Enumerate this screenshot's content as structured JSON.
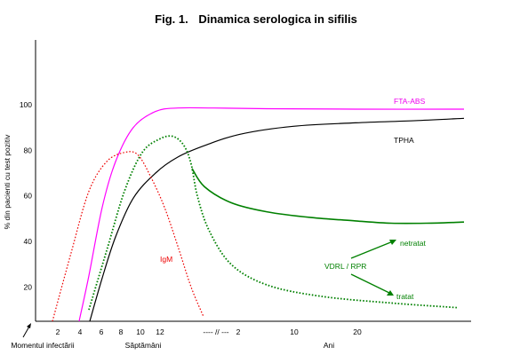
{
  "chart_data": {
    "type": "line",
    "title_prefix": "Fig. 1.",
    "title": "Dinamica serologica in sifilis",
    "ylabel": "% din pacienti cu test pozitiv",
    "ylim": [
      5,
      130
    ],
    "yticks": [
      20,
      40,
      60,
      80,
      100
    ],
    "grid": false,
    "legend": "none",
    "xaxis": {
      "origin_label": "Momentul infectării",
      "weeks_label": "Săptămâni",
      "years_label": "Ani",
      "week_ticks": [
        "2",
        "4",
        "6",
        "8",
        "10",
        "12"
      ],
      "break_label": "---- // ---",
      "year_ticks": [
        "2",
        "10",
        "20"
      ]
    },
    "series": [
      {
        "name": "FTA-ABS",
        "color": "#ff00ff",
        "style": "solid",
        "points": [
          [
            89,
            5
          ],
          [
            100,
            25
          ],
          [
            115,
            55
          ],
          [
            130,
            75
          ],
          [
            150,
            90
          ],
          [
            175,
            97
          ],
          [
            200,
            98.5
          ],
          [
            240,
            98.5
          ],
          [
            300,
            98.2
          ],
          [
            400,
            98
          ],
          [
            522,
            98
          ]
        ]
      },
      {
        "name": "TPHA",
        "color": "#000000",
        "style": "solid",
        "points": [
          [
            101,
            5
          ],
          [
            115,
            24
          ],
          [
            130,
            42
          ],
          [
            150,
            59
          ],
          [
            175,
            70
          ],
          [
            200,
            77
          ],
          [
            230,
            82
          ],
          [
            270,
            87
          ],
          [
            330,
            90.5
          ],
          [
            400,
            92
          ],
          [
            470,
            93
          ],
          [
            522,
            94
          ]
        ]
      },
      {
        "name": "IgM",
        "color": "#ee0000",
        "style": "dotted",
        "points": [
          [
            59,
            5
          ],
          [
            80,
            35
          ],
          [
            100,
            62
          ],
          [
            120,
            75
          ],
          [
            140,
            79
          ],
          [
            155,
            78
          ],
          [
            170,
            68
          ],
          [
            185,
            55
          ],
          [
            200,
            38
          ],
          [
            215,
            20
          ],
          [
            229,
            7
          ]
        ]
      },
      {
        "name": "VDRL / RPR",
        "color": "#008000",
        "style": "dotted",
        "points": [
          [
            100,
            10
          ],
          [
            120,
            36
          ],
          [
            140,
            62
          ],
          [
            160,
            79
          ],
          [
            180,
            85
          ],
          [
            195,
            86
          ],
          [
            207,
            82
          ],
          [
            215,
            74
          ],
          [
            222,
            60
          ],
          [
            235,
            45
          ],
          [
            260,
            30
          ],
          [
            300,
            21
          ],
          [
            360,
            16
          ],
          [
            440,
            13
          ],
          [
            514,
            11
          ]
        ]
      },
      {
        "name": "netratat",
        "color": "#008000",
        "style": "solid",
        "points": [
          [
            216,
            72
          ],
          [
            230,
            64
          ],
          [
            260,
            57
          ],
          [
            300,
            53
          ],
          [
            350,
            50.5
          ],
          [
            400,
            49
          ],
          [
            440,
            48
          ],
          [
            480,
            48
          ],
          [
            522,
            48.5
          ]
        ]
      }
    ],
    "annotations": [
      {
        "text": "FTA-ABS",
        "color": "#ee00ee"
      },
      {
        "text": "TPHA",
        "color": "#000000"
      },
      {
        "text": "IgM",
        "color": "#ee0000"
      },
      {
        "text": "VDRL / RPR",
        "color": "#008000"
      },
      {
        "text": "netratat",
        "color": "#008000"
      },
      {
        "text": "tratat",
        "color": "#008000"
      }
    ]
  }
}
